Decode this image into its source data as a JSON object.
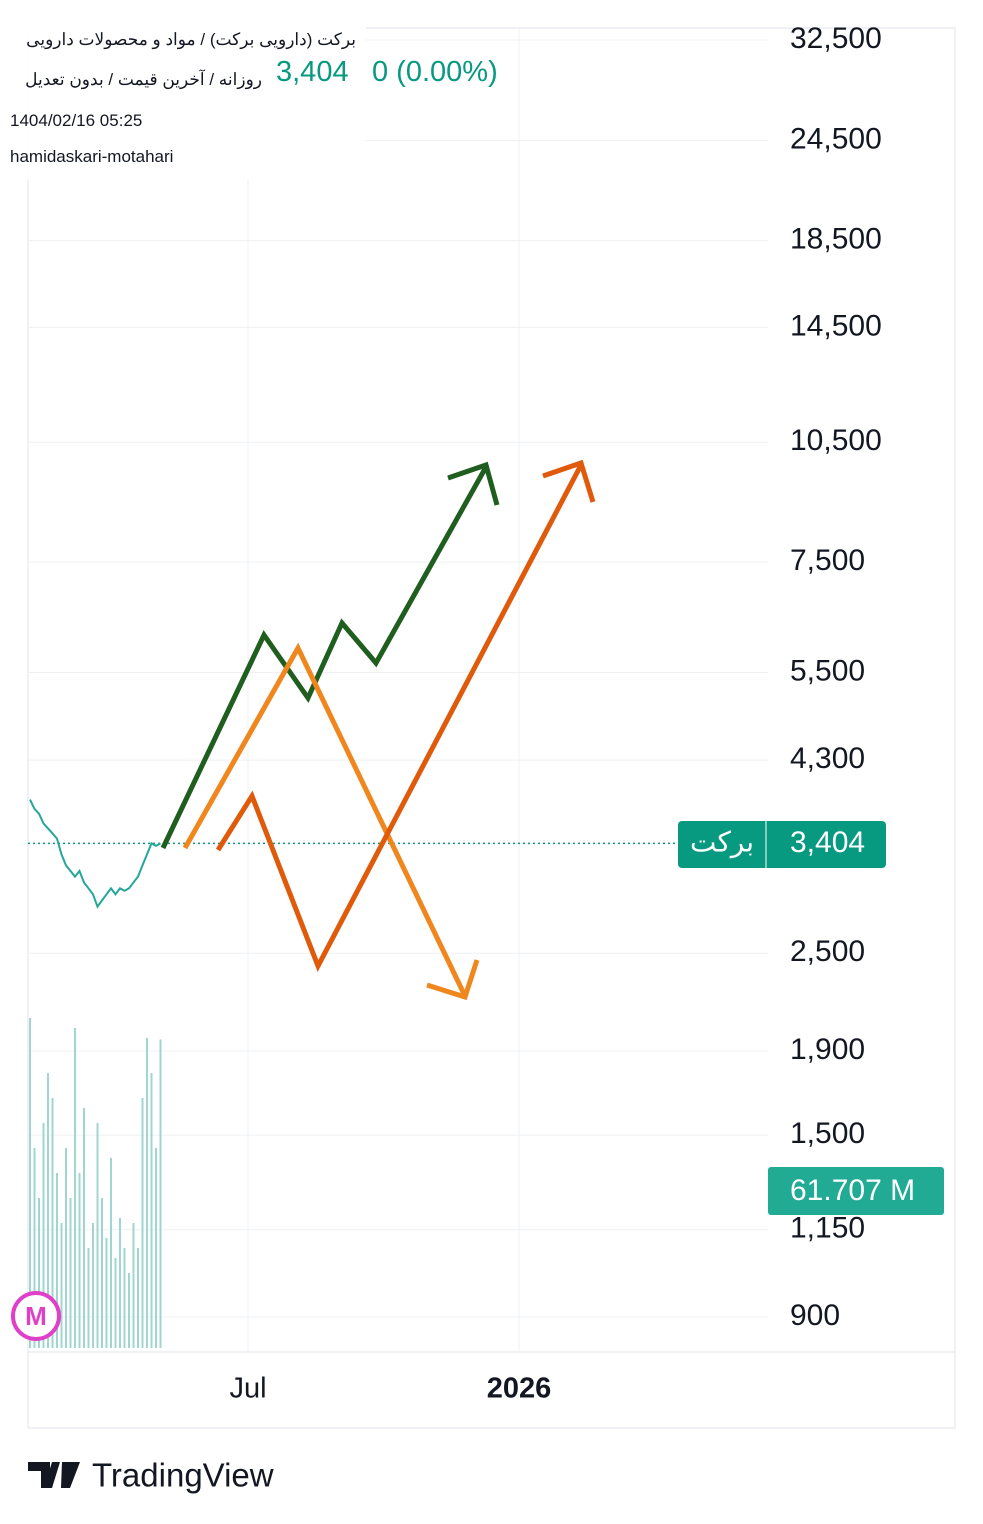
{
  "header": {
    "symbol_title": "برکت (دارویی برکت) / مواد و محصولات دارویی",
    "settings": "روزانه / آخرین قیمت / بدون تعدیل",
    "last_price": {
      "value": 3404,
      "label": "3,404"
    },
    "change": "0 (0.00%)",
    "date": "1404/02/16 05:25",
    "author": "hamidaskari-motahari"
  },
  "chart_data": {
    "type": "line",
    "log_scale": true,
    "grid": true,
    "color": "#26a69a",
    "categories": [
      null,
      null,
      null,
      null,
      null,
      null,
      null,
      null,
      null,
      null,
      null,
      null,
      null,
      null,
      null,
      null,
      null,
      null,
      null,
      null,
      null,
      null,
      null,
      null,
      null,
      null,
      null,
      null,
      null,
      null
    ],
    "series": [
      {
        "values": [
          3850,
          3750,
          3700,
          3600,
          3550,
          3500,
          3450,
          3300,
          3200,
          3150,
          3100,
          3150,
          3050,
          3000,
          2950,
          2850,
          2900,
          2950,
          3000,
          2950,
          3000,
          2980,
          3000,
          3050,
          3100,
          3200,
          3300,
          3404,
          3380,
          3404
        ]
      },
      {
        "values": [
          66,
          40,
          30,
          45,
          55,
          50,
          35,
          25,
          40,
          30,
          64,
          35,
          48,
          20,
          25,
          45,
          30,
          22,
          38,
          18,
          26,
          20,
          15,
          25,
          20,
          50,
          62,
          55,
          40,
          61.707
        ],
        "color": "#9fd6cf"
      }
    ],
    "ylim": [
      900,
      32500
    ],
    "yticks": [
      {
        "value": 900,
        "label": "900"
      },
      {
        "value": 1150,
        "label": "1,150"
      },
      {
        "value": 1500,
        "label": "1,500"
      },
      {
        "value": 1900,
        "label": "1,900"
      },
      {
        "value": 2500,
        "label": "2,500"
      },
      {
        "value": 4300,
        "label": "4,300"
      },
      {
        "value": 5500,
        "label": "5,500"
      },
      {
        "value": 7500,
        "label": "7,500"
      },
      {
        "value": 10500,
        "label": "10,500"
      },
      {
        "value": 14500,
        "label": "14,500"
      },
      {
        "value": 18500,
        "label": "18,500"
      },
      {
        "value": 24500,
        "label": "24,500"
      },
      {
        "value": 32500,
        "label": "32,500"
      }
    ],
    "x_axis_labels": [
      "Jul",
      "2026"
    ],
    "price_tag": {
      "name": "برکت",
      "value": 3404,
      "label": "3,404"
    },
    "volume_tag": "61.707 M",
    "volume_badge": "M"
  },
  "footer": {
    "logo": "TradingView"
  }
}
